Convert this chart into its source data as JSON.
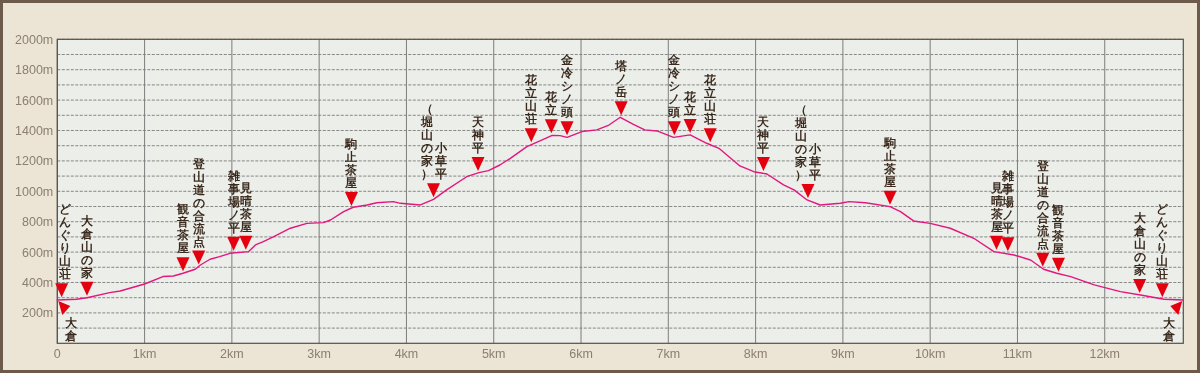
{
  "chart_data": {
    "type": "line",
    "color": "#e3177f",
    "x": [
      0,
      0.22,
      0.34,
      0.6,
      0.72,
      1.0,
      1.21,
      1.33,
      1.44,
      1.58,
      1.64,
      1.75,
      1.86,
      1.98,
      2.19,
      2.27,
      2.36,
      2.48,
      2.67,
      2.86,
      3.05,
      3.13,
      3.28,
      3.39,
      3.55,
      3.66,
      3.85,
      3.93,
      4.16,
      4.31,
      4.46,
      4.69,
      4.83,
      4.94,
      5.07,
      5.19,
      5.38,
      5.51,
      5.67,
      5.76,
      5.84,
      6.01,
      6.18,
      6.32,
      6.45,
      6.6,
      6.73,
      6.87,
      7.06,
      7.25,
      7.44,
      7.58,
      7.82,
      7.98,
      8.13,
      8.32,
      8.44,
      8.59,
      8.74,
      8.97,
      9.07,
      9.26,
      9.54,
      9.66,
      9.81,
      10.0,
      10.23,
      10.5,
      10.73,
      10.96,
      11.15,
      11.3,
      11.45,
      11.61,
      11.88,
      12.18,
      12.41,
      12.68,
      12.9
    ],
    "values": [
      285,
      290,
      300,
      333,
      344,
      390,
      439,
      443,
      461,
      487,
      515,
      553,
      570,
      592,
      603,
      647,
      669,
      702,
      757,
      789,
      794,
      811,
      866,
      895,
      910,
      925,
      932,
      921,
      910,
      947,
      1009,
      1096,
      1123,
      1136,
      1173,
      1217,
      1294,
      1327,
      1368,
      1366,
      1355,
      1393,
      1404,
      1436,
      1487,
      1441,
      1404,
      1397,
      1355,
      1371,
      1316,
      1283,
      1167,
      1129,
      1114,
      1042,
      1009,
      943,
      910,
      921,
      932,
      925,
      899,
      866,
      805,
      789,
      757,
      691,
      603,
      581,
      548,
      487,
      461,
      439,
      384,
      340,
      318,
      290,
      285
    ],
    "xlim": [
      0,
      12.9
    ],
    "ylim": [
      0,
      2000
    ],
    "xticks": [
      0,
      {
        "value": 1,
        "label": "1km"
      },
      {
        "value": 2,
        "label": "2km"
      },
      {
        "value": 3,
        "label": "3km"
      },
      {
        "value": 4,
        "label": "4km"
      },
      {
        "value": 5,
        "label": "5km"
      },
      {
        "value": 6,
        "label": "6km"
      },
      {
        "value": 7,
        "label": "7km"
      },
      {
        "value": 8,
        "label": "8km"
      },
      {
        "value": 9,
        "label": "9km"
      },
      {
        "value": 10,
        "label": "10km"
      },
      {
        "value": 11,
        "label": "11km"
      },
      {
        "value": 12,
        "label": "12km"
      }
    ],
    "yticks": [
      {
        "value": 100,
        "label": null
      },
      {
        "value": 200,
        "label": "200m"
      },
      {
        "value": 300,
        "label": null
      },
      {
        "value": 400,
        "label": "400m"
      },
      {
        "value": 500,
        "label": null
      },
      {
        "value": 600,
        "label": "600m"
      },
      {
        "value": 700,
        "label": null
      },
      {
        "value": 800,
        "label": "800m"
      },
      {
        "value": 900,
        "label": null
      },
      {
        "value": 1000,
        "label": "1000m"
      },
      {
        "value": 1100,
        "label": null
      },
      {
        "value": 1200,
        "label": "1200m"
      },
      {
        "value": 1300,
        "label": null
      },
      {
        "value": 1400,
        "label": "1400m"
      },
      {
        "value": 1500,
        "label": null
      },
      {
        "value": 1600,
        "label": "1600m"
      },
      {
        "value": 1700,
        "label": null
      },
      {
        "value": 1800,
        "label": "1800m"
      },
      {
        "value": 1900,
        "label": null
      },
      {
        "value": 2000,
        "label": "2000m"
      }
    ],
    "grid": true,
    "annotations": [
      {
        "text": "大倉",
        "x": 0,
        "y": 285
      },
      {
        "text": "どんぐり山荘",
        "x": 0.05,
        "y": 290
      },
      {
        "text": "大倉山の家",
        "x": 0.34,
        "y": 300
      },
      {
        "text": "観音茶屋",
        "x": 1.44,
        "y": 461
      },
      {
        "text": "登山道の合流点",
        "x": 1.62,
        "y": 505
      },
      {
        "text": "雑事場ノ平",
        "x": 2.02,
        "y": 595
      },
      {
        "text": "見晴茶屋",
        "x": 2.16,
        "y": 602
      },
      {
        "text": "駒止茶屋",
        "x": 3.37,
        "y": 890
      },
      {
        "text": "小草平",
        "x": 4.31,
        "y": 947
      },
      {
        "text": "（堀山の家）",
        "x": 4.31,
        "y": 947
      },
      {
        "text": "天神平",
        "x": 4.82,
        "y": 1120
      },
      {
        "text": "花立山荘",
        "x": 5.43,
        "y": 1310
      },
      {
        "text": "花立",
        "x": 5.66,
        "y": 1368
      },
      {
        "text": "金冷シノ頭",
        "x": 5.84,
        "y": 1355
      },
      {
        "text": "塔ノ岳",
        "x": 6.46,
        "y": 1487
      },
      {
        "text": "金冷シノ頭",
        "x": 7.07,
        "y": 1355
      },
      {
        "text": "花立",
        "x": 7.25,
        "y": 1371
      },
      {
        "text": "花立山荘",
        "x": 7.48,
        "y": 1310
      },
      {
        "text": "天神平",
        "x": 8.09,
        "y": 1120
      },
      {
        "text": "小草平",
        "x": 8.6,
        "y": 943
      },
      {
        "text": "（堀山の家）",
        "x": 8.6,
        "y": 943
      },
      {
        "text": "駒止茶屋",
        "x": 9.54,
        "y": 899
      },
      {
        "text": "見晴茶屋",
        "x": 10.76,
        "y": 603
      },
      {
        "text": "雑事場ノ平",
        "x": 10.89,
        "y": 592
      },
      {
        "text": "登山道の合流点",
        "x": 11.29,
        "y": 490
      },
      {
        "text": "観音茶屋",
        "x": 11.47,
        "y": 458
      },
      {
        "text": "大倉山の家",
        "x": 12.4,
        "y": 318
      },
      {
        "text": "どんぐり山荘",
        "x": 12.66,
        "y": 290
      },
      {
        "text": "大倉",
        "x": 12.9,
        "y": 285
      }
    ]
  }
}
